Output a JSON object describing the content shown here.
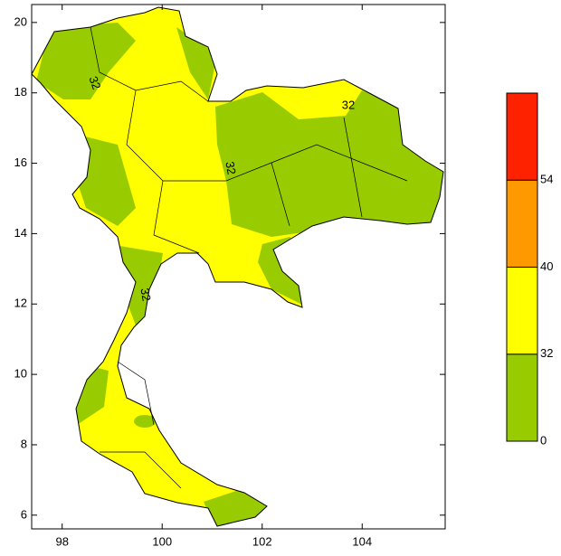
{
  "map": {
    "xlim": [
      97.39,
      105.66
    ],
    "ylim": [
      5.61,
      20.51
    ],
    "xticks": [
      98,
      100,
      102,
      104
    ],
    "yticks": [
      6,
      8,
      10,
      12,
      14,
      16,
      18,
      20
    ],
    "contour_labels": [
      "32",
      "32",
      "32",
      "32"
    ],
    "colorbar": {
      "levels": [
        0,
        32,
        40,
        54
      ],
      "colors": [
        "#99cc00",
        "#ffff00",
        "#ff9900",
        "#ff2200"
      ]
    }
  }
}
